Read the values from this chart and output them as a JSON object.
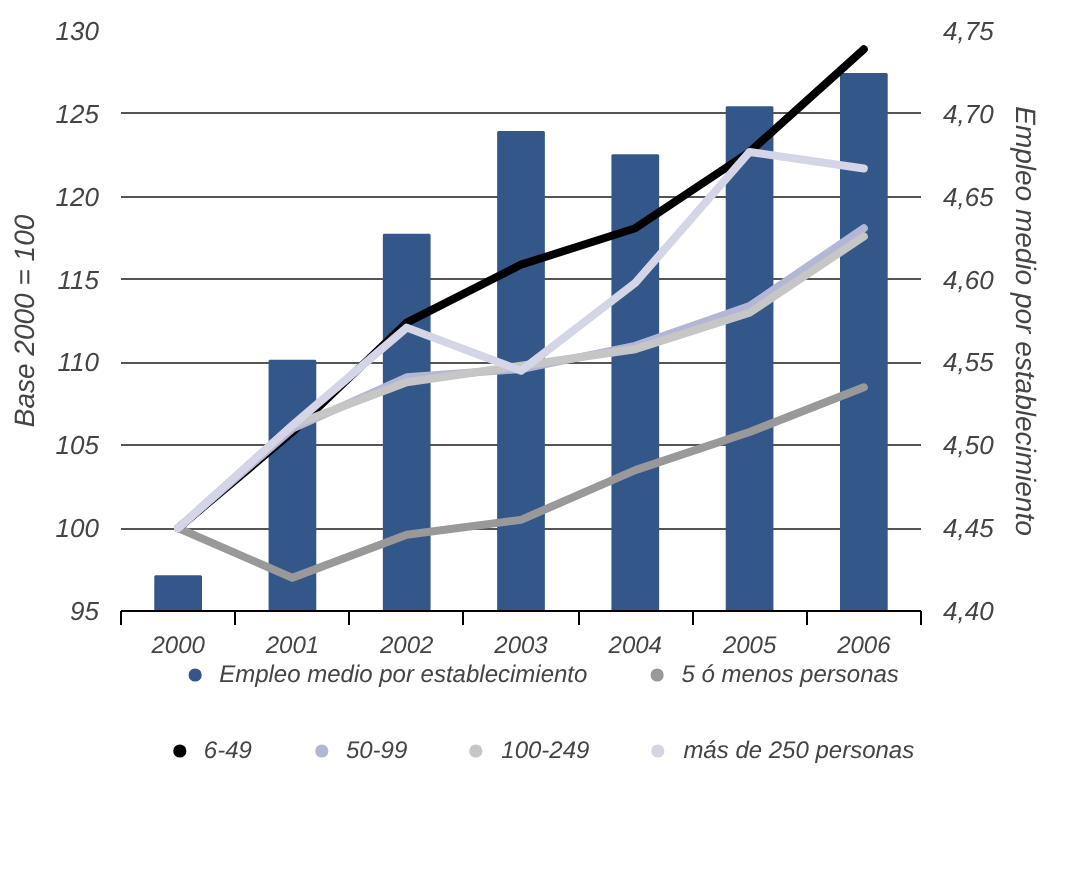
{
  "chart_data": {
    "type": "line",
    "ylabel": "Base 2000 = 100",
    "y2label": "Empleo medio por establecimiento",
    "categories": [
      "2000",
      "2001",
      "2002",
      "2003",
      "2004",
      "2005",
      "2006"
    ],
    "series": [
      {
        "name": "Empleo medio por establecimiento",
        "type": "bar",
        "axis": "y2",
        "color": "#34578a",
        "values": [
          4.421,
          4.551,
          4.627,
          4.689,
          4.675,
          4.704,
          4.724
        ]
      },
      {
        "name": "5 ó menos personas",
        "color": "#999999",
        "values": [
          100,
          97.0,
          99.6,
          100.5,
          103.5,
          105.8,
          108.5
        ]
      },
      {
        "name": "6-49",
        "color": "#000000",
        "values": [
          100,
          105.8,
          112.4,
          115.9,
          118.1,
          122.7,
          128.9
        ]
      },
      {
        "name": "50-99",
        "color": "#b3b6d4",
        "values": [
          100,
          106.0,
          109.1,
          109.6,
          111.0,
          113.4,
          118.1
        ]
      },
      {
        "name": "100-249",
        "color": "#c6c6c6",
        "values": [
          100,
          106.2,
          108.8,
          109.8,
          110.8,
          113.0,
          117.6
        ]
      },
      {
        "name": "más de 250 personas",
        "color": "#d4d5e6",
        "values": [
          100,
          106.2,
          112.1,
          109.5,
          114.8,
          122.7,
          121.7
        ]
      }
    ],
    "ylim": [
      95,
      130
    ],
    "yticks": [
      95,
      100,
      105,
      110,
      115,
      120,
      125,
      130
    ],
    "y2lim": [
      4.4,
      4.75
    ],
    "y2ticks": [
      {
        "value": 4.4,
        "label": "4,40"
      },
      {
        "value": 4.45,
        "label": "4,45"
      },
      {
        "value": 4.5,
        "label": "4,50"
      },
      {
        "value": 4.55,
        "label": "4,55"
      },
      {
        "value": 4.6,
        "label": "4,60"
      },
      {
        "value": 4.65,
        "label": "4,65"
      },
      {
        "value": 4.7,
        "label": "4,70"
      },
      {
        "value": 4.75,
        "label": "4,75"
      }
    ],
    "grid": "y",
    "legend": "bottom",
    "marker": "none",
    "line_style": "solid"
  }
}
